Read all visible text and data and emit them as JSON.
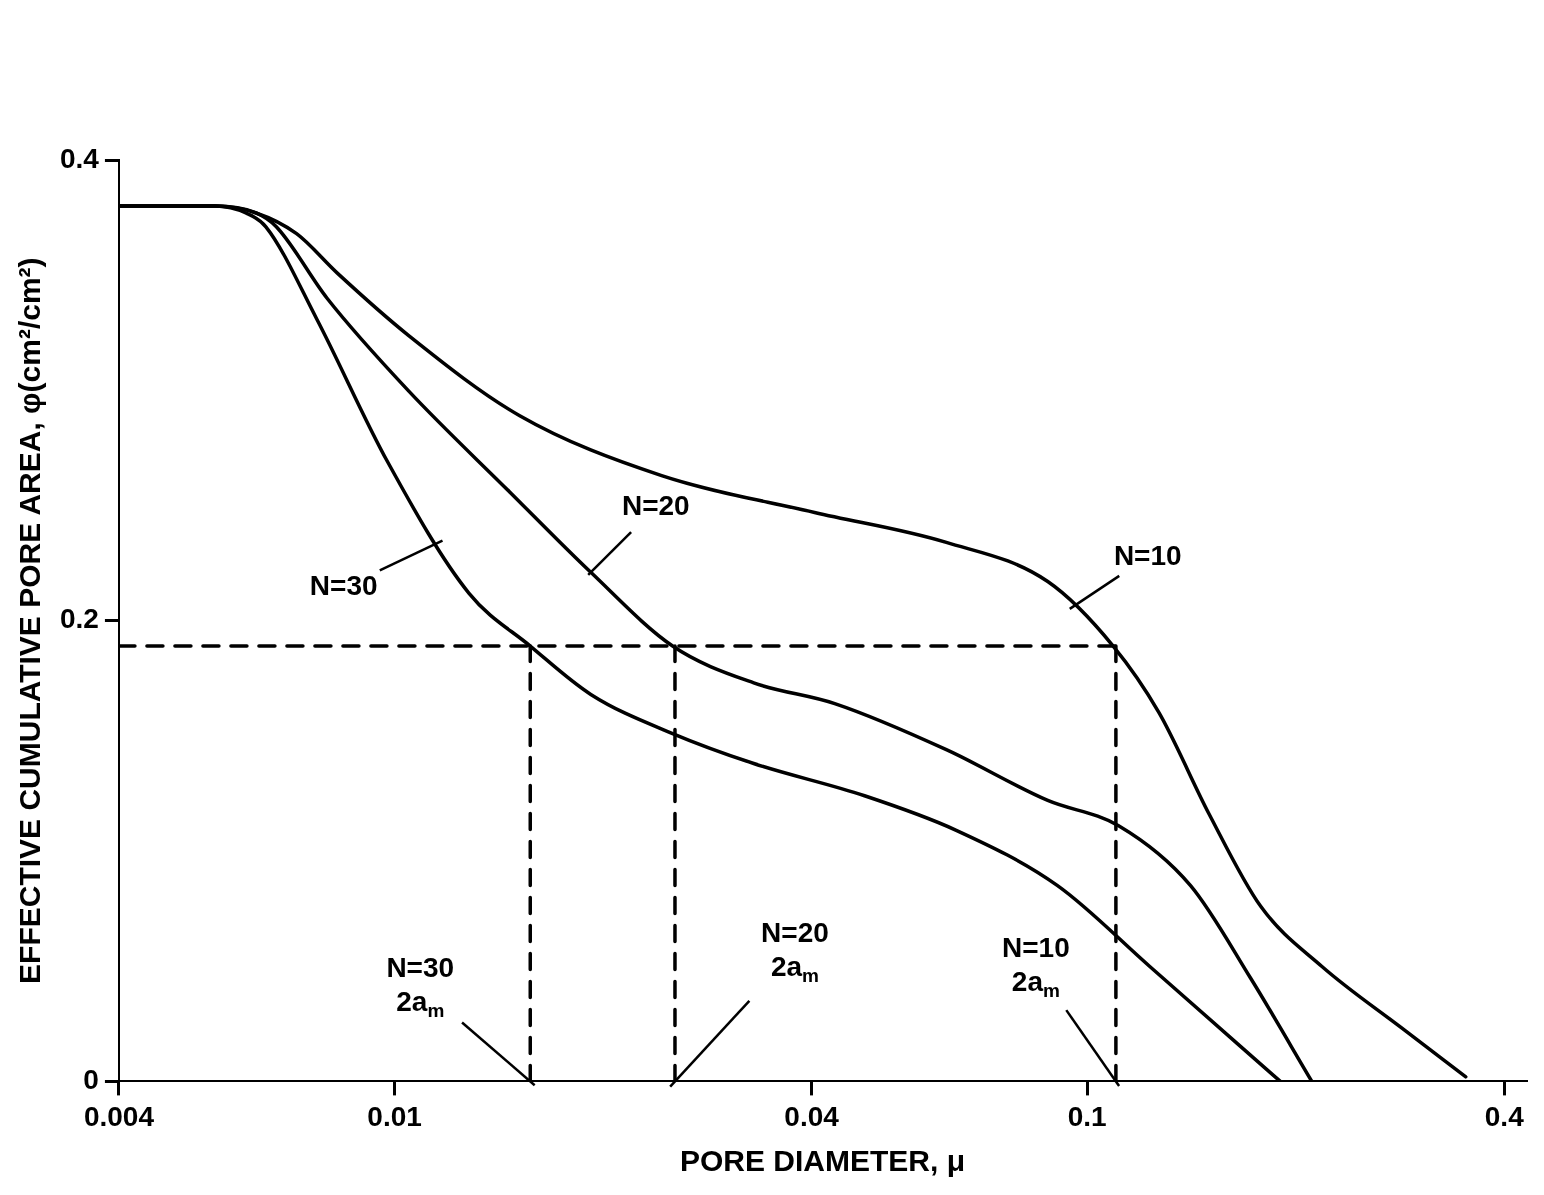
{
  "chart_data": {
    "type": "line",
    "xlabel": "PORE DIAMETER, μ",
    "ylabel": "EFFECTIVE CUMULATIVE PORE AREA, φ(cm²/cm²)",
    "log": "x",
    "xlim": [
      0.004,
      0.43
    ],
    "xticks": [
      0.004,
      0.01,
      0.04,
      0.1,
      0.4
    ],
    "ylim": [
      0,
      0.4
    ],
    "yticks": [
      0,
      0.2,
      0.4
    ],
    "grid": false,
    "legend": false,
    "marker": "none",
    "series": [
      {
        "color": "#000000",
        "x": [
          0.004,
          0.00551,
          0.00631,
          0.00722,
          0.00826,
          0.01046,
          0.01516,
          0.0243,
          0.0404,
          0.0626,
          0.0877,
          0.109,
          0.127,
          0.15,
          0.178,
          0.218,
          0.285,
          0.352
        ],
        "values": [
          0.38,
          0.38,
          0.377,
          0.368,
          0.351,
          0.324,
          0.289,
          0.263,
          0.247,
          0.234,
          0.217,
          0.189,
          0.16,
          0.116,
          0.076,
          0.05,
          0.023,
          0.002
        ]
      },
      {
        "color": "#000000",
        "x": [
          0.004,
          0.00551,
          0.00631,
          0.00675,
          0.00799,
          0.01046,
          0.01465,
          0.0192,
          0.0252,
          0.033,
          0.0432,
          0.0626,
          0.0877,
          0.111,
          0.141,
          0.172,
          0.211
        ],
        "values": [
          0.38,
          0.38,
          0.377,
          0.371,
          0.34,
          0.3,
          0.256,
          0.221,
          0.189,
          0.173,
          0.164,
          0.144,
          0.122,
          0.111,
          0.085,
          0.045,
          0.0
        ]
      },
      {
        "color": "#000000",
        "x": [
          0.004,
          0.00551,
          0.0061,
          0.00652,
          0.00772,
          0.00977,
          0.0128,
          0.0157,
          0.0192,
          0.0252,
          0.033,
          0.0477,
          0.0647,
          0.0906,
          0.123,
          0.19
        ],
        "values": [
          0.38,
          0.38,
          0.377,
          0.371,
          0.331,
          0.269,
          0.212,
          0.189,
          0.168,
          0.151,
          0.138,
          0.124,
          0.109,
          0.085,
          0.05,
          0.0
        ]
      },
      {
        "color": "#000000",
        "line_style": "dashed",
        "x": [
          0.004,
          0.11
        ],
        "values": [
          0.189,
          0.189
        ]
      },
      {
        "color": "#000000",
        "line_style": "dashed",
        "x": [
          0.0157,
          0.0157
        ],
        "values": [
          0,
          0.189
        ]
      },
      {
        "color": "#000000",
        "line_style": "dashed",
        "x": [
          0.0254,
          0.0254
        ],
        "values": [
          0,
          0.189
        ]
      },
      {
        "color": "#000000",
        "line_style": "dashed",
        "x": [
          0.11,
          0.11
        ],
        "values": [
          0,
          0.189
        ]
      }
    ],
    "annotations": [
      {
        "text": "N=30",
        "x": 0.01158,
        "y": 0.234
      },
      {
        "text": "N=20",
        "x": 0.0192,
        "y": 0.221
      },
      {
        "text": "N=10",
        "x": 0.0953,
        "y": 0.206
      },
      {
        "text": "N=30\n2a$_{m}$",
        "x": 0.0157,
        "y": 0
      },
      {
        "text": "N=20\n2a$_{m}$",
        "x": 0.0254,
        "y": 0
      },
      {
        "text": "N=10\n2a$_{m}$",
        "x": 0.11,
        "y": 0
      }
    ]
  }
}
